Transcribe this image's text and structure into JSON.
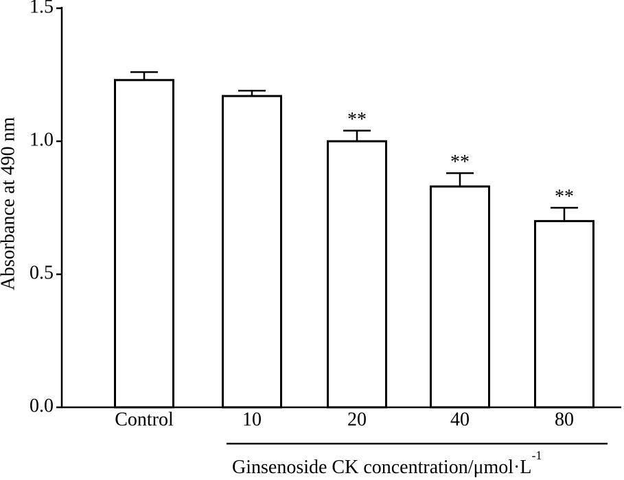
{
  "chart_data": {
    "type": "bar",
    "y_label": "Absorbance at 490 nm",
    "x_label": "Ginsenoside CK concentration/μmol·L",
    "x_label_superscript": "-1",
    "categories": [
      "Control",
      "10",
      "20",
      "40",
      "80"
    ],
    "values": [
      1.23,
      1.17,
      1.0,
      0.83,
      0.7
    ],
    "errors": [
      0.03,
      0.02,
      0.04,
      0.05,
      0.05
    ],
    "significance": [
      null,
      null,
      "**",
      "**",
      "**"
    ],
    "color": "#ffffff",
    "ylim": [
      0,
      1.5
    ],
    "yticks": [
      {
        "value": 0,
        "label": "0.0"
      },
      0.5,
      {
        "value": 1,
        "label": "1.0"
      },
      1.5
    ],
    "grid": false
  }
}
